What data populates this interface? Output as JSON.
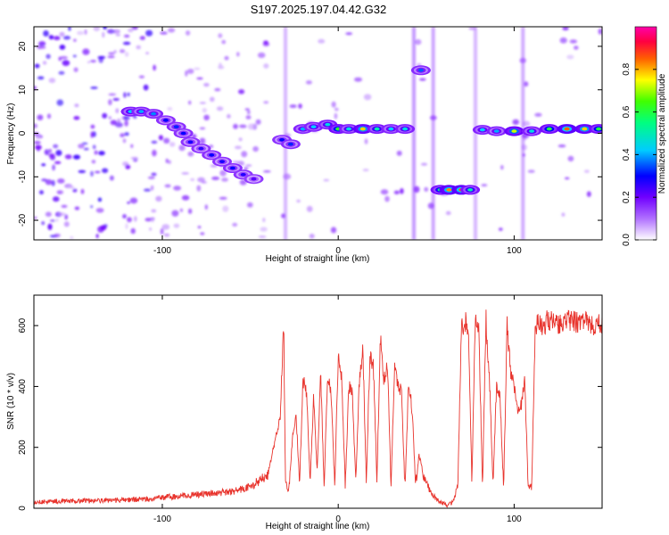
{
  "figure": {
    "title": "S197.2025.197.04.42.G32"
  },
  "chart_data": [
    {
      "type": "heatmap",
      "title": "S197.2025.197.04.42.G32",
      "xlabel": "Height of straight line (km)",
      "ylabel": "Frequency (Hz)",
      "xlim": [
        -173,
        150
      ],
      "ylim": [
        -24.5,
        24.5
      ],
      "x_ticks": [
        -100,
        0,
        100
      ],
      "y_ticks": [
        -20,
        -10,
        0,
        10,
        20
      ],
      "colorbar": {
        "label": "Normalized spectral amplitude",
        "range": [
          0,
          1
        ],
        "ticks": [
          0.0,
          0.2,
          0.4,
          0.6,
          0.8
        ],
        "tick_labels": [
          "0.0",
          "0.2",
          "0.4",
          "0.6",
          "0.8"
        ],
        "colormap": [
          "#ffffff",
          "#8800ff",
          "#0000ff",
          "#00ffff",
          "#00ff00",
          "#ffff00",
          "#ff0000",
          "#ff00aa"
        ]
      },
      "ridge": [
        {
          "x": -118,
          "freq": 5.0,
          "amp": 0.42
        },
        {
          "x": -112,
          "freq": 5.0,
          "amp": 0.4
        },
        {
          "x": -105,
          "freq": 4.5,
          "amp": 0.38
        },
        {
          "x": -98,
          "freq": 3.0,
          "amp": 0.3
        },
        {
          "x": -92,
          "freq": 1.5,
          "amp": 0.32
        },
        {
          "x": -88,
          "freq": 0.0,
          "amp": 0.3
        },
        {
          "x": -84,
          "freq": -2.0,
          "amp": 0.28
        },
        {
          "x": -78,
          "freq": -3.5,
          "amp": 0.26
        },
        {
          "x": -72,
          "freq": -5.0,
          "amp": 0.3
        },
        {
          "x": -66,
          "freq": -6.5,
          "amp": 0.28
        },
        {
          "x": -60,
          "freq": -8.0,
          "amp": 0.3
        },
        {
          "x": -54,
          "freq": -9.5,
          "amp": 0.27
        },
        {
          "x": -48,
          "freq": -10.5,
          "amp": 0.22
        },
        {
          "x": -32,
          "freq": -1.5,
          "amp": 0.3
        },
        {
          "x": -27,
          "freq": -2.5,
          "amp": 0.32
        },
        {
          "x": -20,
          "freq": 1.0,
          "amp": 0.4
        },
        {
          "x": -14,
          "freq": 1.5,
          "amp": 0.42
        },
        {
          "x": -6,
          "freq": 2.0,
          "amp": 0.45
        },
        {
          "x": 0,
          "freq": 1.0,
          "amp": 0.62
        },
        {
          "x": 6,
          "freq": 1.0,
          "amp": 0.45
        },
        {
          "x": 14,
          "freq": 1.0,
          "amp": 0.78
        },
        {
          "x": 22,
          "freq": 1.0,
          "amp": 0.5
        },
        {
          "x": 30,
          "freq": 1.0,
          "amp": 0.42
        },
        {
          "x": 38,
          "freq": 1.0,
          "amp": 0.45
        },
        {
          "x": 47,
          "freq": 14.5,
          "amp": 0.35
        },
        {
          "x": 58,
          "freq": -13.0,
          "amp": 0.55
        },
        {
          "x": 63,
          "freq": -13.0,
          "amp": 0.82
        },
        {
          "x": 70,
          "freq": -13.0,
          "amp": 0.85
        },
        {
          "x": 75,
          "freq": -13.0,
          "amp": 0.5
        },
        {
          "x": 82,
          "freq": 0.8,
          "amp": 0.42
        },
        {
          "x": 90,
          "freq": 0.5,
          "amp": 0.4
        },
        {
          "x": 100,
          "freq": 0.5,
          "amp": 0.72
        },
        {
          "x": 110,
          "freq": 0.5,
          "amp": 0.45
        },
        {
          "x": 120,
          "freq": 1.0,
          "amp": 0.6
        },
        {
          "x": 130,
          "freq": 1.0,
          "amp": 0.85
        },
        {
          "x": 140,
          "freq": 1.0,
          "amp": 0.78
        },
        {
          "x": 148,
          "freq": 1.0,
          "amp": 0.6
        }
      ]
    },
    {
      "type": "line",
      "xlabel": "Height of straight line (km)",
      "ylabel": "SNR (10 * v/v)",
      "xlim": [
        -173,
        150
      ],
      "ylim": [
        0,
        700
      ],
      "x_ticks": [
        -100,
        0,
        100
      ],
      "y_ticks": [
        0,
        200,
        400,
        600
      ],
      "color": "#e8332c",
      "series": [
        {
          "x": [
            -173,
            -150,
            -130,
            -110,
            -100,
            -90,
            -80,
            -70,
            -60,
            -50,
            -45,
            -40,
            -36,
            -33,
            -31,
            -30,
            -28,
            -26,
            -24,
            -22,
            -20,
            -18,
            -16,
            -14,
            -12,
            -10,
            -8,
            -6,
            -4,
            -2,
            0,
            2,
            4,
            6,
            8,
            10,
            12,
            14,
            16,
            18,
            20,
            22,
            24,
            26,
            28,
            30,
            32,
            34,
            36,
            38,
            40,
            42,
            44,
            46,
            48,
            50,
            52,
            54,
            56,
            58,
            60,
            62,
            64,
            66,
            68,
            70,
            72,
            74,
            76,
            78,
            80,
            82,
            84,
            86,
            88,
            90,
            92,
            94,
            96,
            98,
            100,
            102,
            104,
            106,
            108,
            110,
            112,
            114,
            116,
            120,
            125,
            130,
            135,
            140,
            145,
            150
          ],
          "y": [
            20,
            25,
            25,
            30,
            35,
            40,
            45,
            50,
            55,
            70,
            90,
            110,
            220,
            300,
            620,
            80,
            60,
            230,
            320,
            80,
            420,
            380,
            90,
            360,
            120,
            440,
            70,
            440,
            380,
            70,
            500,
            420,
            70,
            400,
            380,
            80,
            420,
            520,
            90,
            500,
            470,
            90,
            560,
            420,
            470,
            80,
            460,
            400,
            380,
            60,
            420,
            320,
            80,
            180,
            120,
            80,
            60,
            40,
            30,
            20,
            15,
            10,
            15,
            30,
            80,
            580,
            620,
            580,
            90,
            640,
            580,
            70,
            620,
            420,
            80,
            400,
            370,
            60,
            600,
            450,
            400,
            320,
            340,
            420,
            70,
            65,
            600,
            620,
            600,
            620,
            600,
            620,
            610,
            620,
            600,
            610
          ]
        }
      ]
    }
  ]
}
